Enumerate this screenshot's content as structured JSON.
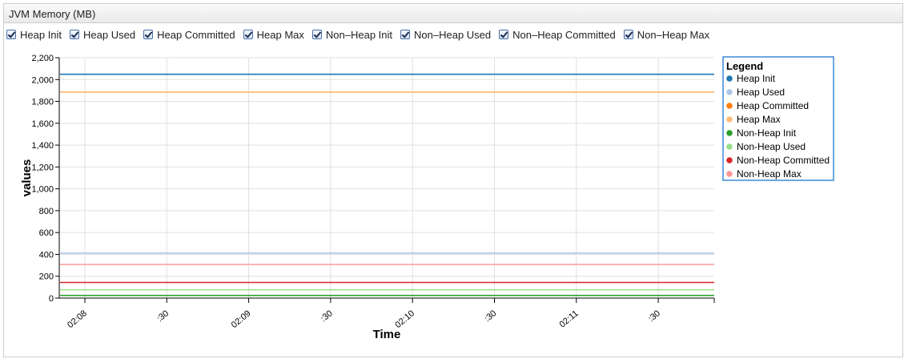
{
  "panel": {
    "title": "JVM Memory (MB)"
  },
  "toggles": [
    {
      "label": "Heap Init",
      "checked": true
    },
    {
      "label": "Heap Used",
      "checked": true
    },
    {
      "label": "Heap Committed",
      "checked": true
    },
    {
      "label": "Heap Max",
      "checked": true
    },
    {
      "label": "Non–Heap Init",
      "checked": true
    },
    {
      "label": "Non–Heap Used",
      "checked": true
    },
    {
      "label": "Non–Heap Committed",
      "checked": true
    },
    {
      "label": "Non–Heap Max",
      "checked": true
    }
  ],
  "chart_data": {
    "type": "line",
    "xlabel": "Time",
    "ylabel": "values",
    "ylim": [
      0,
      2200
    ],
    "yticks": [
      0,
      200,
      400,
      600,
      800,
      1000,
      1200,
      1400,
      1600,
      1800,
      2000,
      2200
    ],
    "ytick_labels": [
      "0",
      "200",
      "400",
      "600",
      "800",
      "1,000",
      "1,200",
      "1,400",
      "1,600",
      "1,800",
      "2,000",
      "2,200"
    ],
    "x_tick_labels": [
      "02:08",
      ":30",
      "02:09",
      ":30",
      "02:10",
      ":30",
      "02:11",
      ":30"
    ],
    "grid": true,
    "legend": {
      "title": "Legend",
      "placement": "right"
    },
    "series": [
      {
        "name": "Heap Init",
        "color": "#1f77b4",
        "value": 2048
      },
      {
        "name": "Heap Used",
        "color": "#aec7e8",
        "value": 412
      },
      {
        "name": "Heap Committed",
        "color": "#ff7f0e",
        "value": 1886
      },
      {
        "name": "Heap Max",
        "color": "#ffbb78",
        "value": 1886
      },
      {
        "name": "Non-Heap Init",
        "color": "#2ca02c",
        "value": 24
      },
      {
        "name": "Non-Heap Used",
        "color": "#98df8a",
        "value": 76
      },
      {
        "name": "Non-Heap Committed",
        "color": "#d62728",
        "value": 143
      },
      {
        "name": "Non-Heap Max",
        "color": "#ff9896",
        "value": 308
      }
    ]
  }
}
